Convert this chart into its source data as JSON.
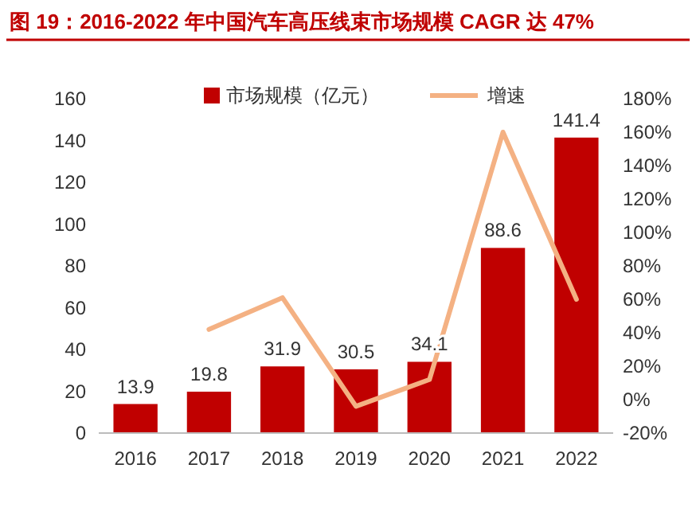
{
  "chart_data": {
    "type": "bar",
    "title": "图 19：2016-2022 年中国汽车高压线束市场规模 CAGR 达 47%",
    "categories": [
      "2016",
      "2017",
      "2018",
      "2019",
      "2020",
      "2021",
      "2022"
    ],
    "series": [
      {
        "name": "市场规模（亿元）",
        "color": "#c00000",
        "values": [
          13.9,
          19.8,
          31.9,
          30.5,
          34.1,
          88.6,
          141.4
        ],
        "value_labels": [
          "13.9",
          "19.8",
          "31.9",
          "30.5",
          "34.1",
          "88.6",
          "141.4"
        ]
      },
      {
        "name": "增速",
        "type": "line",
        "axis": "y2",
        "color": "#f4b183",
        "values": [
          null,
          42,
          61,
          -4,
          12,
          160,
          60
        ]
      }
    ],
    "ylim": [
      0,
      160
    ],
    "yticks": [
      0,
      20,
      40,
      60,
      80,
      100,
      120,
      140,
      160
    ],
    "y2lim": [
      -20,
      180
    ],
    "y2ticks": [
      {
        "value": -20,
        "label": "-20%"
      },
      {
        "value": 0,
        "label": "0%"
      },
      {
        "value": 20,
        "label": "20%"
      },
      {
        "value": 40,
        "label": "40%"
      },
      {
        "value": 60,
        "label": "60%"
      },
      {
        "value": 80,
        "label": "80%"
      },
      {
        "value": 100,
        "label": "100%"
      },
      {
        "value": 120,
        "label": "120%"
      },
      {
        "value": 140,
        "label": "140%"
      },
      {
        "value": 160,
        "label": "160%"
      },
      {
        "value": 180,
        "label": "180%"
      }
    ],
    "legend": "top",
    "grid": false
  }
}
